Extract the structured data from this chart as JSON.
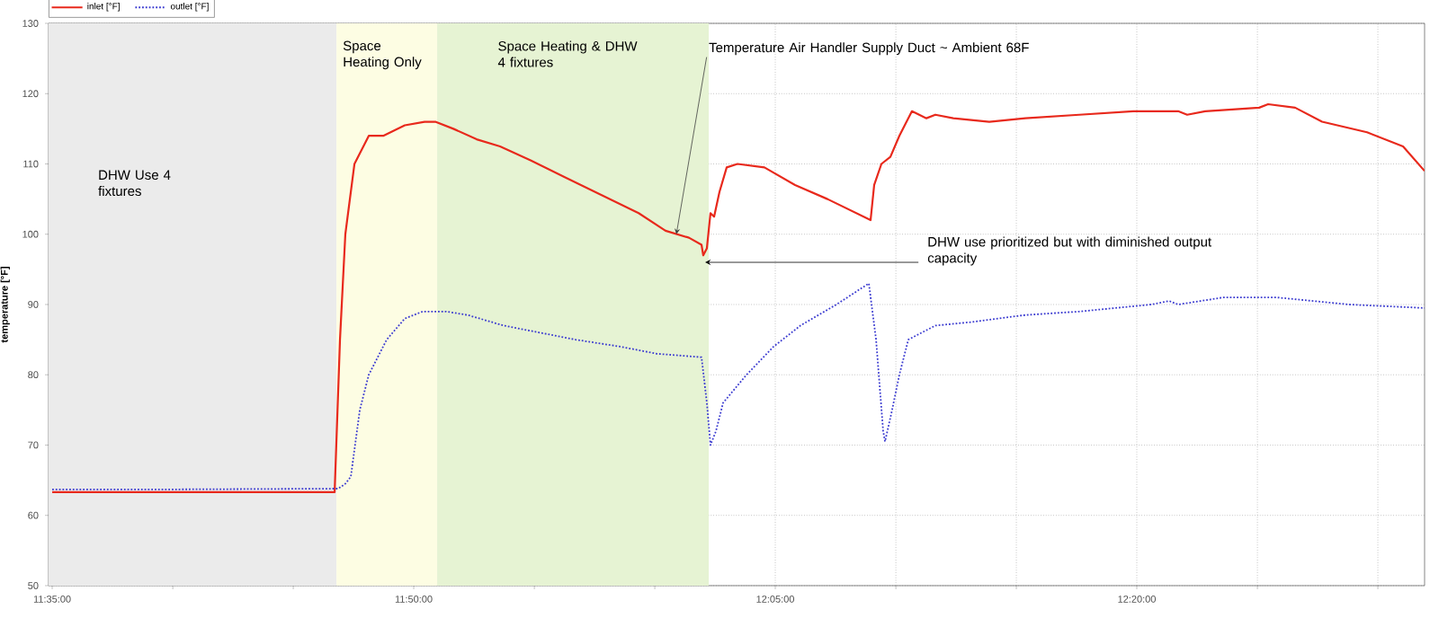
{
  "chart_data": {
    "type": "line",
    "xlabel": null,
    "ylabel": "temperature [°F]",
    "xlim": [
      11.5808,
      12.5323
    ],
    "ylim": [
      50,
      130
    ],
    "xticks": [
      {
        "value": 11.5833,
        "label": "11:35:00"
      },
      {
        "value": 11.6667,
        "label": null
      },
      {
        "value": 11.75,
        "label": null
      },
      {
        "value": 11.8333,
        "label": "11:50:00"
      },
      {
        "value": 11.9167,
        "label": null
      },
      {
        "value": 12.0,
        "label": null
      },
      {
        "value": 12.0833,
        "label": "12:05:00"
      },
      {
        "value": 12.1667,
        "label": null
      },
      {
        "value": 12.25,
        "label": null
      },
      {
        "value": 12.3333,
        "label": "12:20:00"
      },
      {
        "value": 12.4167,
        "label": null
      },
      {
        "value": 12.5,
        "label": null
      }
    ],
    "yticks": [
      50,
      60,
      70,
      80,
      90,
      100,
      110,
      120,
      130
    ],
    "grid": true,
    "legend": "top left",
    "bands": [
      {
        "axis": "x",
        "from": 11.5808,
        "to": 11.7799,
        "label": "DHW Use 4 fixtures",
        "color": "#ebebeb"
      },
      {
        "axis": "x",
        "from": 11.7799,
        "to": 11.8495,
        "label": "Space Heating Only",
        "color": "#fdfde3"
      },
      {
        "axis": "x",
        "from": 11.8495,
        "to": 12.0373,
        "label": "Space Heating & DHW 4 fixtures",
        "color": "#e6f3d3"
      }
    ],
    "annotations": [
      {
        "text": "Temperature Air Handler Supply Duct ~ Ambient 68F",
        "x": 12.0149,
        "y": 100
      },
      {
        "text": "DHW use prioritized but with diminished output capacity",
        "x": 12.0348,
        "y": 96
      }
    ],
    "series": [
      {
        "name": "inlet [°F]",
        "color": "#e8291c",
        "line_style": "solid",
        "x": [
          11.5833,
          11.6716,
          11.7786,
          11.7823,
          11.786,
          11.7923,
          11.8022,
          11.8122,
          11.8271,
          11.8408,
          11.8482,
          11.8607,
          11.8768,
          11.893,
          11.9141,
          11.939,
          11.9639,
          11.9888,
          12.0074,
          12.0236,
          12.0323,
          12.0335,
          12.036,
          12.0385,
          12.041,
          12.0447,
          12.0497,
          12.0572,
          12.0758,
          12.097,
          12.1194,
          12.1492,
          12.1517,
          12.1567,
          12.1629,
          12.1691,
          12.1778,
          12.1878,
          12.194,
          12.2064,
          12.2313,
          12.2562,
          12.2935,
          12.3308,
          12.3619,
          12.3681,
          12.3806,
          12.4179,
          12.4241,
          12.4428,
          12.4614,
          12.4925,
          12.5174,
          12.5323
        ],
        "values": [
          63.3,
          63.3,
          63.3,
          85,
          100,
          110,
          114,
          114,
          115.5,
          116,
          116,
          115,
          113.5,
          112.5,
          110.5,
          108,
          105.5,
          103,
          100.5,
          99.5,
          98.5,
          97,
          98,
          103,
          102.5,
          106,
          109.5,
          110,
          109.5,
          107,
          105,
          102,
          107,
          110,
          111,
          114,
          117.5,
          116.5,
          117,
          116.5,
          116,
          116.5,
          117,
          117.5,
          117.5,
          117,
          117.5,
          118,
          118.5,
          118,
          116,
          114.5,
          112.5,
          109
        ]
      },
      {
        "name": "outlet [°F]",
        "color": "#3a3ad0",
        "line_style": "dotted",
        "x": [
          11.5833,
          11.6716,
          11.7811,
          11.786,
          11.7898,
          11.796,
          11.8022,
          11.8146,
          11.8271,
          11.8395,
          11.8557,
          11.8706,
          11.8955,
          11.9204,
          11.9452,
          11.9763,
          12.0012,
          12.0323,
          12.036,
          12.0385,
          12.0423,
          12.0472,
          12.0634,
          12.0821,
          12.1007,
          12.1256,
          12.148,
          12.153,
          12.1579,
          12.1592,
          12.1641,
          12.1691,
          12.1753,
          12.194,
          12.2189,
          12.2562,
          12.2935,
          12.3433,
          12.3557,
          12.3619,
          12.393,
          12.4303,
          12.4801,
          12.5323
        ],
        "values": [
          63.7,
          63.7,
          63.8,
          64.5,
          65.5,
          75,
          80,
          85,
          88,
          89,
          89,
          88.5,
          87,
          86,
          85,
          84,
          83,
          82.5,
          76,
          70,
          72,
          76,
          80,
          84,
          87,
          90,
          93,
          85,
          72,
          70.5,
          75,
          80,
          85,
          87,
          87.5,
          88.5,
          89,
          90,
          90.5,
          90,
          91,
          91,
          90,
          89.5
        ]
      }
    ]
  }
}
